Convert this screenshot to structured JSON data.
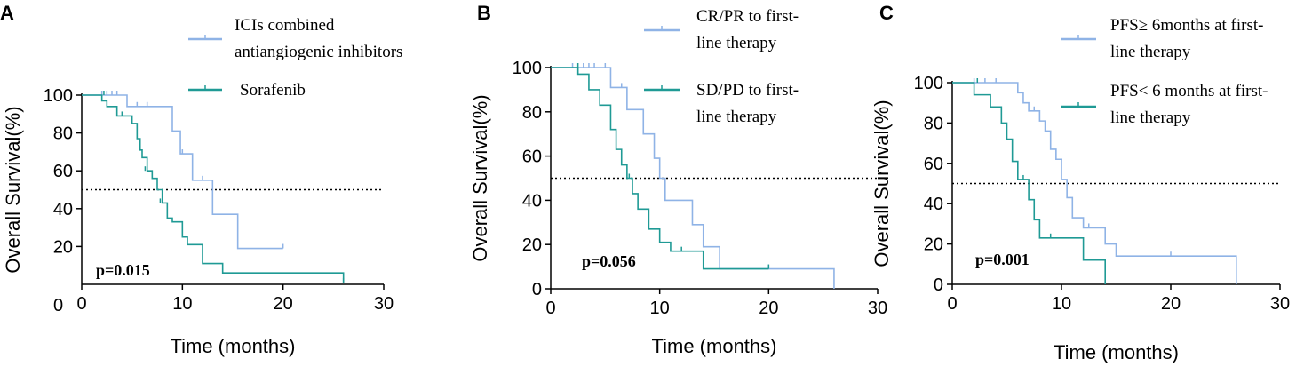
{
  "colors": {
    "light": "#8fb3e6",
    "dark": "#1f9a95",
    "ref": "#000000"
  },
  "chart_data": [
    {
      "type": "line",
      "panel": "A",
      "xlabel": "Time (months)",
      "ylabel": "Overall Survival(%)",
      "xlim": [
        0,
        30
      ],
      "ylim": [
        0,
        100
      ],
      "xticks": [
        "0",
        "10",
        "20",
        "30"
      ],
      "yticks": [
        "20",
        "40",
        "60",
        "80",
        "100"
      ],
      "y0_label": "0",
      "reference_line": 50,
      "p_value": "p=0.015",
      "legend": [
        {
          "lines": [
            "ICIs combined",
            "antiangiogenic inhibitors"
          ],
          "color_key": "light"
        },
        {
          "lines": [
            "Sorafenib"
          ],
          "color_key": "dark"
        }
      ],
      "series": [
        {
          "name": "ICIs combined antiangiogenic inhibitors",
          "color_key": "light",
          "steps": [
            [
              0,
              100
            ],
            [
              4.5,
              94
            ],
            [
              9,
              81
            ],
            [
              9.8,
              69
            ],
            [
              11,
              55
            ],
            [
              13,
              37
            ],
            [
              15.5,
              19
            ],
            [
              20,
              19
            ]
          ],
          "censors": [
            [
              2,
              100
            ],
            [
              2.5,
              100
            ],
            [
              3,
              100
            ],
            [
              3.5,
              100
            ],
            [
              5.5,
              94
            ],
            [
              6.5,
              94
            ],
            [
              10,
              69
            ],
            [
              12,
              55
            ],
            [
              20,
              19
            ]
          ]
        },
        {
          "name": "Sorafenib",
          "color_key": "dark",
          "steps": [
            [
              0,
              100
            ],
            [
              2,
              97
            ],
            [
              2.5,
              94
            ],
            [
              3.5,
              89
            ],
            [
              5,
              85
            ],
            [
              5.5,
              77
            ],
            [
              5.8,
              71
            ],
            [
              6,
              67
            ],
            [
              6.5,
              60
            ],
            [
              7,
              56
            ],
            [
              7.5,
              50
            ],
            [
              8,
              43
            ],
            [
              8.5,
              35
            ],
            [
              9,
              33
            ],
            [
              10,
              25
            ],
            [
              10.5,
              21
            ],
            [
              12,
              11
            ],
            [
              14,
              6
            ],
            [
              26,
              1
            ]
          ],
          "censors": [
            [
              2.2,
              100
            ],
            [
              4,
              89
            ],
            [
              6.3,
              60
            ],
            [
              7.8,
              43
            ],
            [
              26,
              1
            ]
          ]
        }
      ]
    },
    {
      "type": "line",
      "panel": "B",
      "xlabel": "Time (months)",
      "ylabel": "Overall Survival(%)",
      "xlim": [
        0,
        30
      ],
      "ylim": [
        0,
        100
      ],
      "xticks": [
        "0",
        "10",
        "20",
        "30"
      ],
      "yticks": [
        "0",
        "20",
        "40",
        "60",
        "80",
        "100"
      ],
      "reference_line": 50,
      "p_value": "p=0.056",
      "legend": [
        {
          "lines": [
            "CR/PR to first-",
            "line therapy"
          ],
          "color_key": "light"
        },
        {
          "lines": [
            "SD/PD to first-",
            "line therapy"
          ],
          "color_key": "dark"
        }
      ],
      "series": [
        {
          "name": "CR/PR to first-line therapy",
          "color_key": "light",
          "steps": [
            [
              0,
              100
            ],
            [
              5.5,
              91
            ],
            [
              7,
              81
            ],
            [
              8.5,
              70
            ],
            [
              9.5,
              59
            ],
            [
              10,
              50
            ],
            [
              10.5,
              40
            ],
            [
              13,
              29
            ],
            [
              14,
              19
            ],
            [
              15.5,
              9
            ],
            [
              26,
              0
            ]
          ],
          "censors": [
            [
              2,
              100
            ],
            [
              3,
              100
            ],
            [
              3.5,
              100
            ],
            [
              4,
              100
            ],
            [
              5,
              100
            ],
            [
              6.5,
              91
            ],
            [
              20,
              9
            ]
          ]
        },
        {
          "name": "SD/PD to first-line therapy",
          "color_key": "dark",
          "steps": [
            [
              0,
              100
            ],
            [
              2.5,
              97
            ],
            [
              3.5,
              90
            ],
            [
              4.5,
              83
            ],
            [
              5.5,
              72
            ],
            [
              6,
              63
            ],
            [
              6.5,
              56
            ],
            [
              7,
              50
            ],
            [
              7.5,
              43
            ],
            [
              8,
              36
            ],
            [
              9,
              27
            ],
            [
              10,
              21
            ],
            [
              11,
              17
            ],
            [
              14,
              9
            ],
            [
              20,
              9
            ]
          ],
          "censors": [
            [
              2.5,
              100
            ],
            [
              7.2,
              50
            ],
            [
              12,
              17
            ],
            [
              20,
              9
            ]
          ]
        }
      ]
    },
    {
      "type": "line",
      "panel": "C",
      "xlabel": "Time (months)",
      "ylabel": "Overall Survival(%)",
      "xlim": [
        0,
        30
      ],
      "ylim": [
        0,
        100
      ],
      "xticks": [
        "0",
        "10",
        "20",
        "30"
      ],
      "yticks": [
        "0",
        "20",
        "40",
        "60",
        "80",
        "100"
      ],
      "reference_line": 50,
      "p_value": "p=0.001",
      "legend": [
        {
          "lines": [
            "PFS≥ 6months at first-",
            "line therapy"
          ],
          "color_key": "light"
        },
        {
          "lines": [
            "PFS< 6 months at first-",
            "line therapy"
          ],
          "color_key": "dark"
        }
      ],
      "series": [
        {
          "name": "PFS≥ 6months at first-line therapy",
          "color_key": "light",
          "steps": [
            [
              0,
              100
            ],
            [
              6,
              95
            ],
            [
              6.5,
              90
            ],
            [
              7,
              86
            ],
            [
              8,
              81
            ],
            [
              8.5,
              76
            ],
            [
              9,
              67
            ],
            [
              9.5,
              62
            ],
            [
              10,
              52
            ],
            [
              10.5,
              43
            ],
            [
              11,
              33
            ],
            [
              12,
              28
            ],
            [
              14,
              20
            ],
            [
              15,
              14
            ],
            [
              26,
              0
            ]
          ],
          "censors": [
            [
              2,
              100
            ],
            [
              3,
              100
            ],
            [
              4,
              100
            ],
            [
              7.5,
              86
            ],
            [
              12.5,
              28
            ],
            [
              20,
              14
            ]
          ]
        },
        {
          "name": "PFS< 6 months at first-line therapy",
          "color_key": "dark",
          "steps": [
            [
              0,
              100
            ],
            [
              2,
              94
            ],
            [
              3.5,
              88
            ],
            [
              4.5,
              80
            ],
            [
              5,
              72
            ],
            [
              5.5,
              61
            ],
            [
              6,
              52
            ],
            [
              7,
              42
            ],
            [
              7.5,
              32
            ],
            [
              8,
              23
            ],
            [
              12,
              12
            ],
            [
              14,
              0
            ]
          ],
          "censors": [
            [
              2.3,
              100
            ],
            [
              6.5,
              52
            ],
            [
              9,
              23
            ]
          ]
        }
      ]
    }
  ]
}
